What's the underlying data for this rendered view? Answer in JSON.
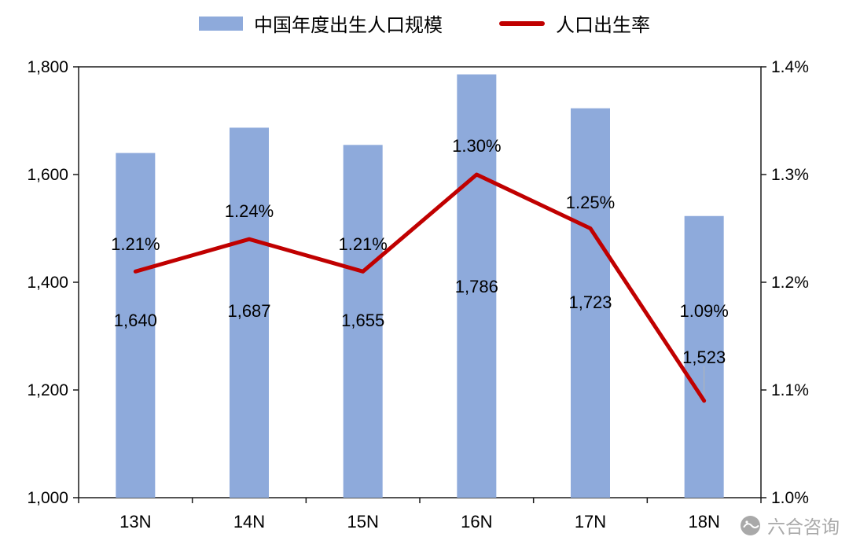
{
  "chart_data": {
    "type": "bar",
    "categories": [
      "13N",
      "14N",
      "15N",
      "16N",
      "17N",
      "18N"
    ],
    "series": [
      {
        "name": "中国年度出生人口规模",
        "type": "bar",
        "axis": "left",
        "color": "#8EAADB",
        "values": [
          1640,
          1687,
          1655,
          1786,
          1723,
          1523
        ],
        "labels": [
          "1,640",
          "1,687",
          "1,655",
          "1,786",
          "1,723",
          "1,523"
        ]
      },
      {
        "name": "人口出生率",
        "type": "line",
        "axis": "right",
        "color": "#C00000",
        "values": [
          1.21,
          1.24,
          1.21,
          1.3,
          1.25,
          1.09
        ],
        "labels": [
          "1.21%",
          "1.24%",
          "1.21%",
          "1.30%",
          "1.25%",
          "1.09%"
        ]
      }
    ],
    "left_axis": {
      "min": 1000,
      "max": 1800,
      "ticks": [
        "1,800",
        "1,600",
        "1,400",
        "1,200",
        "1,000"
      ]
    },
    "right_axis": {
      "min": 1.0,
      "max": 1.4,
      "ticks": [
        "1.4%",
        "1.3%",
        "1.2%",
        "1.1%",
        "1.0%"
      ]
    },
    "grid": "box-border-only",
    "legend_position": "top-center"
  },
  "watermark": {
    "text": "六合咨询"
  }
}
